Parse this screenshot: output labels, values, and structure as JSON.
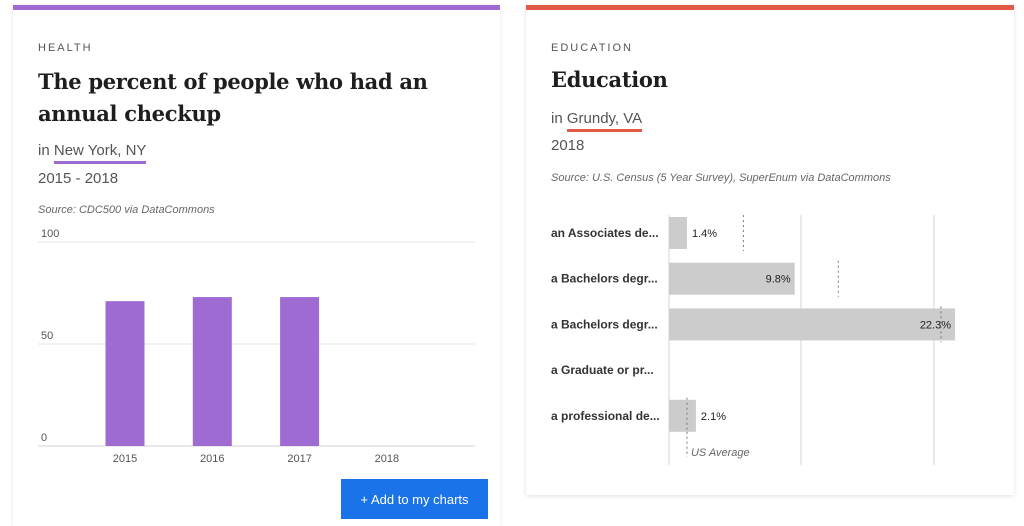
{
  "health_card": {
    "category": "HEALTH",
    "title_line1": "The percent of people who had an",
    "title_line2": "annual checkup",
    "location_prefix": "in",
    "location": "New York, NY",
    "years": "2015 - 2018",
    "source": "Source: CDC500 via DataCommons",
    "add_button": "+ Add to my charts",
    "accent_color": "#9d6bd1"
  },
  "education_card": {
    "category": "EDUCATION",
    "title": "Education",
    "location_prefix": "in",
    "location": "Grundy, VA",
    "years": "2018",
    "source": "Source: U.S. Census (5 Year Survey), SuperEnum via DataCommons",
    "accent_color": "#e05a47"
  },
  "chart_data": [
    {
      "type": "bar",
      "categories": [
        "2015",
        "2016",
        "2017",
        "2018"
      ],
      "values": [
        71,
        73,
        73,
        null
      ],
      "ylim": [
        0,
        100
      ],
      "yticks": [
        "0",
        "50",
        "100"
      ],
      "color": "#9d6bd1",
      "grid": true
    },
    {
      "type": "bar",
      "orientation": "horizontal",
      "categories": [
        "an Associates de...",
        "a Bachelors degr...",
        "a Bachelors degr...",
        "a Graduate or pr...",
        "a professional de..."
      ],
      "values": [
        1.4,
        9.8,
        22.3,
        null,
        2.1
      ],
      "value_labels": [
        "1.4%",
        "9.8%",
        "22.3%",
        "",
        "2.1%"
      ],
      "us_average": [
        5.8,
        13.2,
        21.2,
        null,
        1.4
      ],
      "us_average_label": "US Average",
      "xlim": [
        0,
        23
      ],
      "color": "#cccccc"
    }
  ]
}
